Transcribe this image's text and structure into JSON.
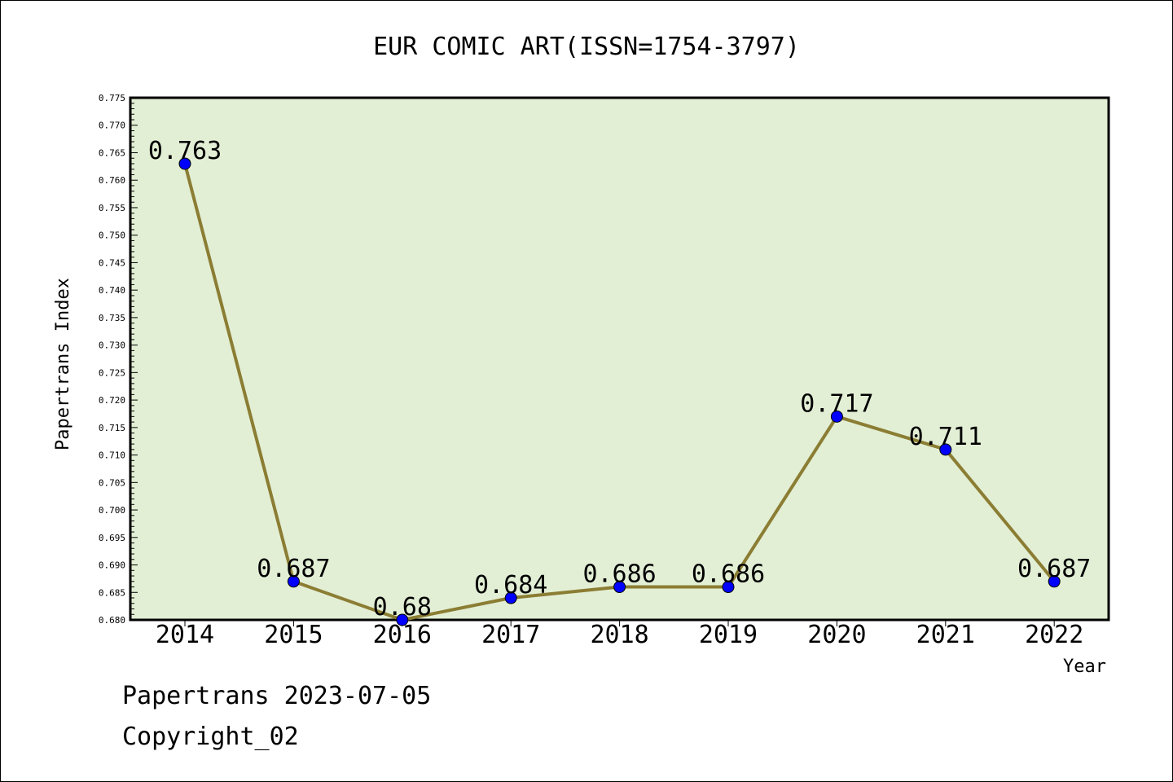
{
  "chart_data": {
    "type": "line",
    "title": "EUR COMIC ART(ISSN=1754-3797)",
    "xlabel": "Year",
    "ylabel": "Papertrans Index",
    "categories": [
      "2014",
      "2015",
      "2016",
      "2017",
      "2018",
      "2019",
      "2020",
      "2021",
      "2022"
    ],
    "series": [
      {
        "values": [
          0.763,
          0.687,
          0.68,
          0.684,
          0.686,
          0.686,
          0.717,
          0.711,
          0.687
        ],
        "labels": [
          "0.763",
          "0.687",
          "0.68",
          "0.684",
          "0.686",
          "0.686",
          "0.717",
          "0.711",
          "0.687"
        ],
        "line_color": "#8b7d33",
        "marker_color": "#0000ff"
      }
    ],
    "ylim": [
      0.68,
      0.775
    ],
    "yticks": [
      "0.680",
      "0.685",
      "0.690",
      "0.695",
      "0.700",
      "0.705",
      "0.710",
      "0.715",
      "0.720",
      "0.725",
      "0.730",
      "0.735",
      "0.740",
      "0.745",
      "0.750",
      "0.755",
      "0.760",
      "0.765",
      "0.770",
      "0.775"
    ],
    "plot_background": "#e2efd5",
    "grid": false,
    "legend": "none"
  },
  "footer": {
    "line1": "Papertrans 2023-07-05",
    "line2": "Copyright_02"
  }
}
